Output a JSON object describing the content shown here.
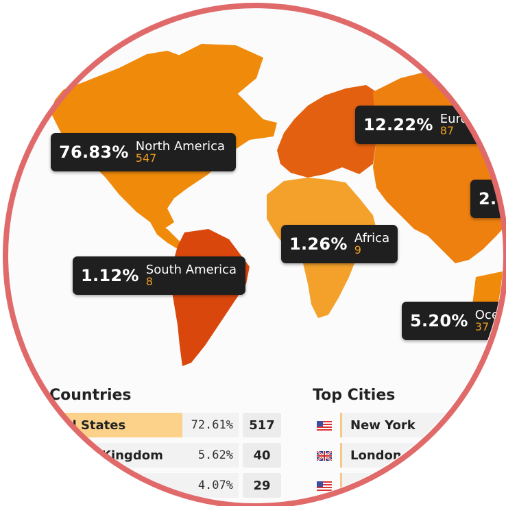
{
  "map": {
    "colors": {
      "north_america": "#f08a0a",
      "south_america": "#d9470d",
      "europe": "#e26010",
      "africa": "#f3a12a",
      "asia": "#ee8010",
      "oceania": "#f08a0a",
      "ring": "#e06a6a",
      "callout_bg": "#1f1f1f",
      "count_color": "#f0a020"
    },
    "callouts": [
      {
        "id": "north-america",
        "percent": "76.83%",
        "name": "North America",
        "count": "547"
      },
      {
        "id": "europe",
        "percent": "12.22%",
        "name": "Euro",
        "count": "87"
      },
      {
        "id": "asia",
        "percent": "2.",
        "name": "",
        "count": ""
      },
      {
        "id": "africa",
        "percent": "1.26%",
        "name": "Africa",
        "count": "9"
      },
      {
        "id": "south-america",
        "percent": "1.12%",
        "name": "South America",
        "count": "8"
      },
      {
        "id": "oceania",
        "percent": "5.20%",
        "name": "Oce",
        "count": "37"
      }
    ]
  },
  "top_countries": {
    "title": "Countries",
    "rows": [
      {
        "name": "ted States",
        "percent": "72.61%",
        "count": "517",
        "share": 72.61
      },
      {
        "name": "Kingdom",
        "percent": "5.62%",
        "count": "40",
        "share": 5.62
      },
      {
        "name": "",
        "percent": "4.07%",
        "count": "29",
        "share": 4.07
      }
    ]
  },
  "top_cities": {
    "title": "Top Cities",
    "rows": [
      {
        "flag": "us-flag-icon",
        "name": "New York"
      },
      {
        "flag": "uk-flag-icon",
        "name": "London"
      },
      {
        "flag": "us-flag-icon",
        "name": ""
      }
    ]
  }
}
